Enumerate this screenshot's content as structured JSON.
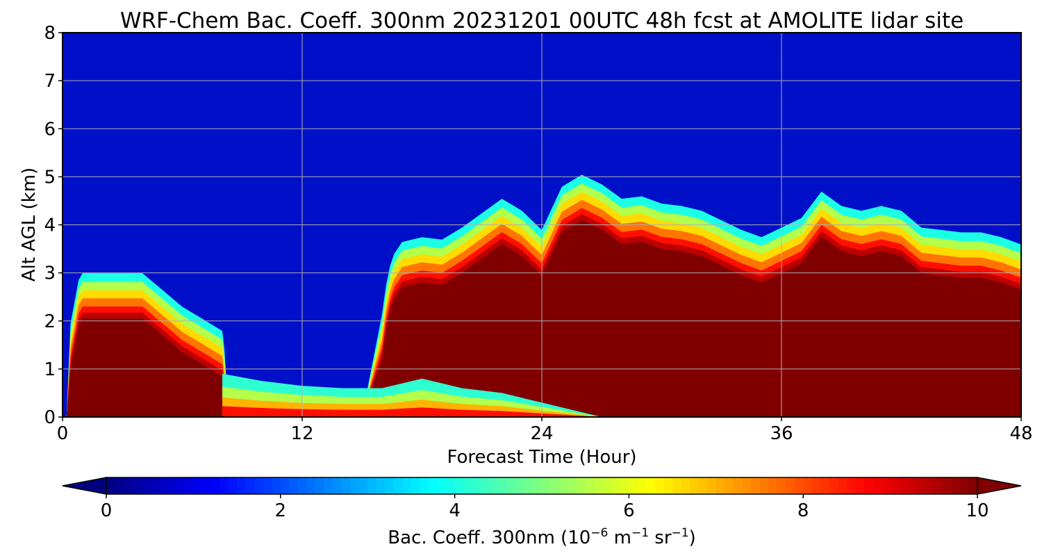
{
  "chart_data": {
    "type": "heatmap",
    "title": "WRF-Chem Bac. Coeff. 300nm  20231201 00UTC 48h fcst at AMOLITE lidar site",
    "xlabel": "Forecast Time (Hour)",
    "ylabel": "Alt AGL (km)",
    "xlim": [
      0,
      48
    ],
    "ylim": [
      0,
      8
    ],
    "xticks": [
      0,
      12,
      24,
      36,
      48
    ],
    "yticks": [
      0,
      1,
      2,
      3,
      4,
      5,
      6,
      7,
      8
    ],
    "grid": true,
    "colormap": "jet",
    "colorbar": {
      "label": "Bac. Coeff. 300nm  (10",
      "label_exp": "−6",
      "label_unit": " m",
      "label_unit_exp": "−1",
      "label_unit2": " sr",
      "label_unit2_exp": "−1",
      "label_close": ")",
      "range": [
        0,
        10
      ],
      "ticks": [
        0,
        2,
        4,
        6,
        8,
        10
      ],
      "extend": "both",
      "orientation": "horizontal",
      "placement": "bottom"
    },
    "saturated_layer_top_km": {
      "hours": [
        0.2,
        0.4,
        0.8,
        1,
        3,
        4,
        5,
        6,
        7,
        8,
        8.1,
        8.3,
        9,
        10,
        11,
        12,
        13,
        14,
        15,
        16,
        16.2,
        16.4,
        16.6,
        17,
        18,
        19,
        20,
        21,
        22,
        23,
        24,
        25,
        26,
        27,
        28,
        29,
        30,
        31,
        32,
        33,
        34,
        35,
        36,
        37,
        38,
        39,
        40,
        41,
        42,
        43,
        44,
        45,
        46,
        47,
        48
      ],
      "km": [
        0,
        1.0,
        1.9,
        2.05,
        2.05,
        2.05,
        1.7,
        1.35,
        1.1,
        0.85,
        0.5,
        0.2,
        0.12,
        0.08,
        0.05,
        0.04,
        0.03,
        0.02,
        0.02,
        1.2,
        1.8,
        2.2,
        2.45,
        2.7,
        2.8,
        2.75,
        3.0,
        3.3,
        3.6,
        3.35,
        2.95,
        3.85,
        4.1,
        3.9,
        3.6,
        3.65,
        3.5,
        3.45,
        3.35,
        3.15,
        2.95,
        2.8,
        3.0,
        3.2,
        3.75,
        3.45,
        3.35,
        3.45,
        3.35,
        3.0,
        2.95,
        2.9,
        2.9,
        2.8,
        2.65
      ]
    },
    "surface_layer_top_km": {
      "hours": [
        8,
        10,
        12,
        14,
        16,
        17,
        18,
        20,
        22,
        24,
        26,
        27
      ],
      "km": [
        0.9,
        0.75,
        0.65,
        0.6,
        0.6,
        0.7,
        0.8,
        0.6,
        0.5,
        0.3,
        0.1,
        0
      ]
    }
  }
}
